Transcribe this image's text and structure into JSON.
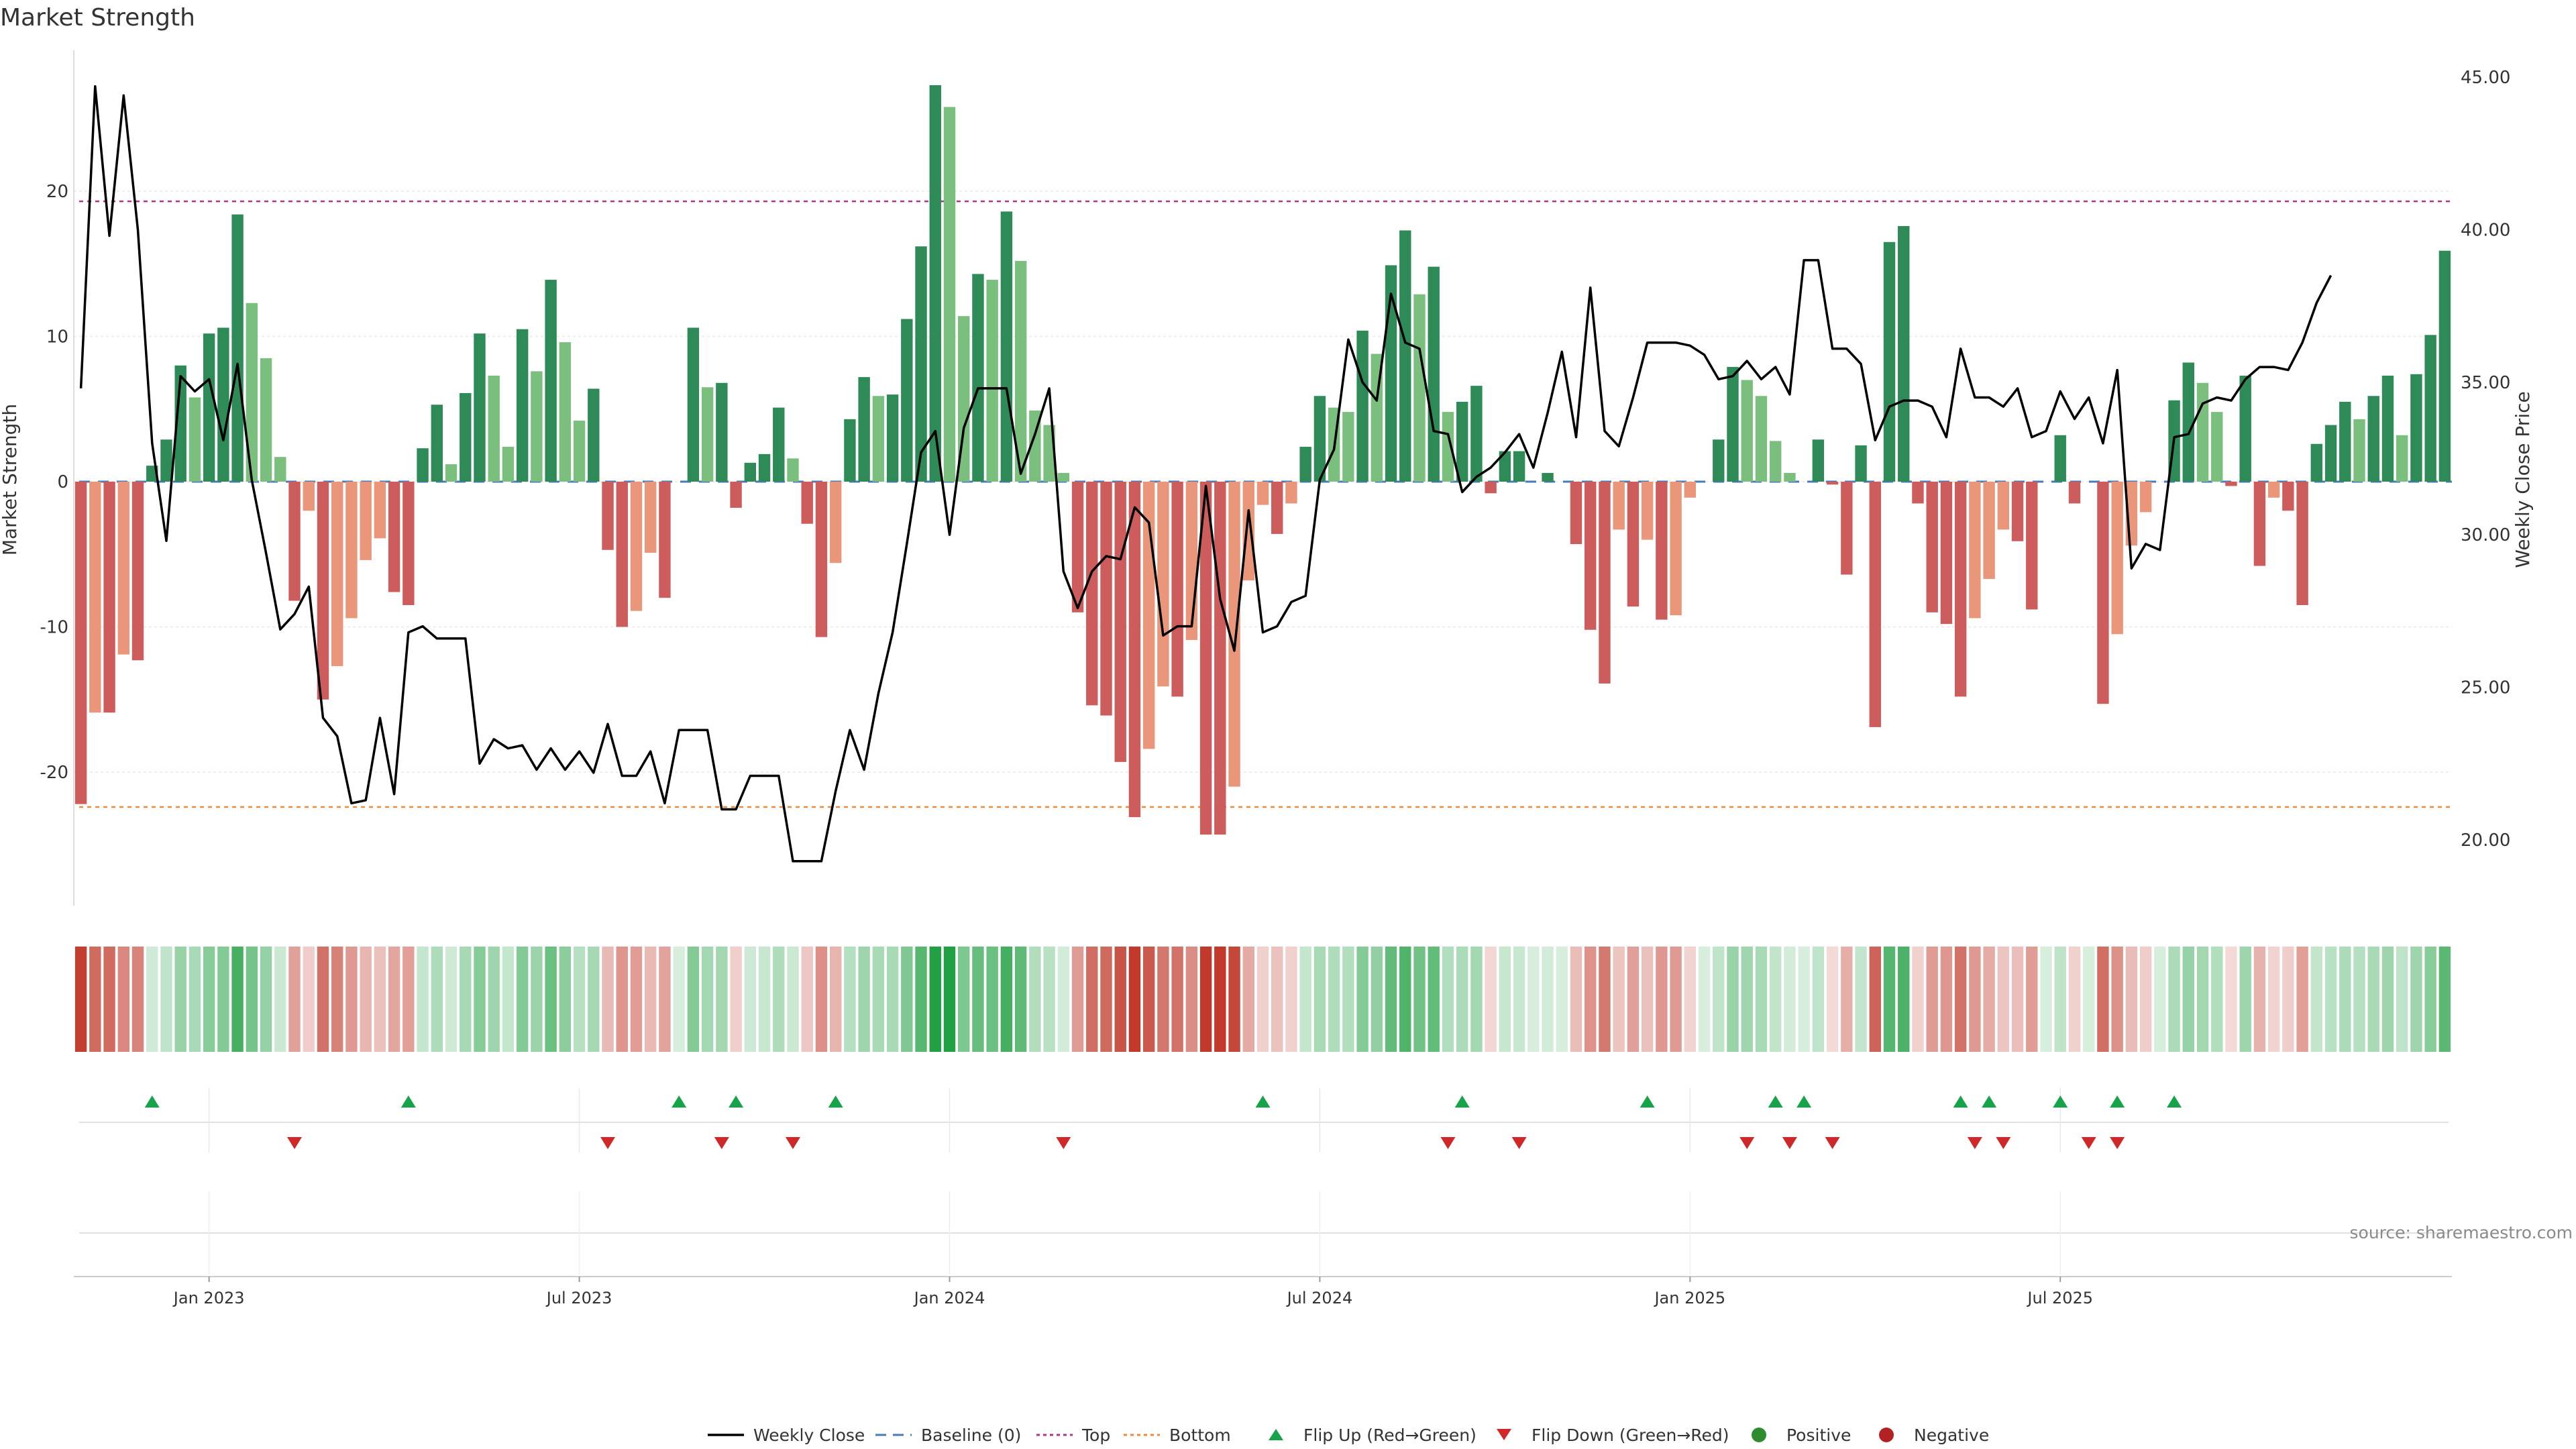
{
  "chart_data": {
    "type": "bar",
    "title": "Market Strength",
    "ylabel_left": "Market Strength",
    "ylabel_right": "Weekly Close Price",
    "source": "source: sharemaestro.com",
    "ylim_left": [
      -29,
      30
    ],
    "ylim_right": [
      17.7,
      46.4
    ],
    "yticks_left": [
      {
        "value": 20,
        "label": "20"
      },
      {
        "value": 10,
        "label": "10"
      },
      {
        "value": 0,
        "label": "0"
      },
      {
        "value": -10,
        "label": "-10"
      },
      {
        "value": -20,
        "label": "-20"
      }
    ],
    "yticks_right": [
      {
        "value": 45,
        "label": "45.00"
      },
      {
        "value": 40,
        "label": "40.00"
      },
      {
        "value": 35,
        "label": "35.00"
      },
      {
        "value": 30,
        "label": "30.00"
      },
      {
        "value": 25,
        "label": "25.00"
      },
      {
        "value": 20,
        "label": "20.00"
      }
    ],
    "xticks": [
      {
        "week": 9,
        "label": "Jan 2023"
      },
      {
        "week": 35,
        "label": "Jul 2023"
      },
      {
        "week": 61,
        "label": "Jan 2024"
      },
      {
        "week": 87,
        "label": "Jul 2024"
      },
      {
        "week": 113,
        "label": "Jan 2025"
      },
      {
        "week": 139,
        "label": "Jul 2025"
      }
    ],
    "top_line": 19.3,
    "bottom_line": -22.4,
    "baseline": 0,
    "strength": [
      -22.2,
      -15.9,
      -15.9,
      -11.9,
      -12.3,
      1.1,
      2.9,
      8.0,
      5.8,
      10.2,
      10.6,
      18.4,
      12.3,
      8.5,
      1.7,
      -8.2,
      -2.0,
      -15.0,
      -12.7,
      -9.4,
      -5.4,
      -3.9,
      -7.6,
      -8.5,
      2.3,
      5.3,
      1.2,
      6.1,
      10.2,
      7.3,
      2.4,
      10.5,
      7.6,
      13.9,
      9.6,
      4.2,
      6.4,
      -4.7,
      -10.0,
      -8.9,
      -4.9,
      -8.0,
      0.0,
      10.6,
      6.5,
      6.8,
      -1.8,
      1.3,
      1.9,
      5.1,
      1.6,
      -2.9,
      -10.7,
      -5.6,
      4.3,
      7.2,
      5.9,
      6.0,
      11.2,
      16.2,
      27.3,
      25.8,
      11.4,
      14.3,
      13.9,
      18.6,
      15.2,
      4.9,
      3.9,
      0.6,
      -9.0,
      -15.4,
      -16.1,
      -19.3,
      -23.1,
      -18.4,
      -14.1,
      -14.8,
      -10.9,
      -24.3,
      -24.3,
      -21.0,
      -6.8,
      -1.6,
      -3.6,
      -1.5,
      2.4,
      5.9,
      5.1,
      4.8,
      10.4,
      8.8,
      14.9,
      17.3,
      12.9,
      14.8,
      4.8,
      5.5,
      6.6,
      -0.8,
      2.1,
      2.1,
      0.0,
      0.6,
      0.0,
      -4.3,
      -10.2,
      -13.9,
      -3.3,
      -8.6,
      -4.0,
      -9.5,
      -9.2,
      -1.1,
      0.0,
      2.9,
      7.9,
      7.0,
      5.9,
      2.8,
      0.6,
      0.0,
      2.9,
      -0.2,
      -6.4,
      2.5,
      -16.9,
      16.5,
      17.6,
      -1.5,
      -9.0,
      -9.8,
      -14.8,
      -9.4,
      -6.7,
      -3.3,
      -4.1,
      -8.8,
      0.0,
      3.2,
      -1.5,
      0.0,
      -15.3,
      -10.5,
      -4.4,
      -2.1,
      0.0,
      5.6,
      8.2,
      6.8,
      4.8,
      -0.3,
      7.3,
      -5.8,
      -1.1,
      -2.0,
      -8.5,
      2.6,
      3.9,
      5.5,
      4.3,
      5.9,
      7.3,
      3.2,
      7.4,
      10.1,
      15.9
    ],
    "close": [
      34.8,
      44.7,
      39.8,
      44.4,
      40.0,
      33.0,
      29.8,
      35.2,
      34.7,
      35.1,
      33.1,
      35.6,
      31.8,
      29.4,
      26.9,
      27.4,
      28.3,
      24.0,
      23.4,
      21.2,
      21.3,
      24.0,
      21.5,
      26.8,
      27.0,
      26.6,
      26.6,
      26.6,
      22.5,
      23.3,
      23.0,
      23.1,
      22.3,
      23.0,
      22.3,
      22.9,
      22.2,
      23.8,
      22.1,
      22.1,
      22.9,
      21.2,
      23.6,
      23.6,
      23.6,
      21.0,
      21.0,
      22.1,
      22.1,
      22.1,
      19.3,
      19.3,
      19.3,
      21.6,
      23.6,
      22.3,
      24.8,
      26.8,
      29.7,
      32.7,
      33.4,
      30.0,
      33.5,
      34.8,
      34.8,
      34.8,
      32.0,
      33.3,
      34.8,
      28.8,
      27.6,
      28.8,
      29.3,
      29.2,
      30.9,
      30.4,
      26.7,
      27.0,
      27.0,
      31.6,
      27.9,
      26.2,
      30.8,
      26.8,
      27.0,
      27.8,
      28.0,
      31.8,
      32.8,
      36.4,
      35.0,
      34.4,
      37.9,
      36.3,
      36.1,
      33.4,
      33.3,
      31.4,
      31.9,
      32.2,
      32.7,
      33.3,
      32.2,
      34.0,
      36.0,
      33.2,
      38.1,
      33.4,
      32.9,
      34.5,
      36.3,
      36.3,
      36.3,
      36.2,
      35.9,
      35.1,
      35.2,
      35.7,
      35.1,
      35.5,
      34.6,
      39.0,
      39.0,
      36.1,
      36.1,
      35.6,
      33.1,
      34.2,
      34.4,
      34.4,
      34.2,
      33.2,
      36.1,
      34.5,
      34.5,
      34.2,
      34.8,
      33.2,
      33.4,
      34.7,
      33.8,
      34.5,
      33.0,
      35.4,
      28.9,
      29.7,
      29.5,
      33.2,
      33.3,
      34.3,
      34.5,
      34.4,
      35.1,
      35.5,
      35.5,
      35.4,
      36.3,
      37.6,
      38.5
    ],
    "flip_up_weeks": [
      5,
      23,
      42,
      46,
      53,
      83,
      97,
      110,
      119,
      121,
      132,
      134,
      139,
      143,
      147
    ],
    "flip_down_weeks": [
      15,
      37,
      45,
      50,
      69,
      96,
      101,
      117,
      120,
      123,
      133,
      135,
      141,
      143
    ],
    "series": [
      {
        "name": "Weekly Close",
        "color": "#000000"
      },
      {
        "name": "Baseline (0)",
        "color": "#4a7ab8"
      },
      {
        "name": "Top",
        "color": "#b0358a"
      },
      {
        "name": "Bottom",
        "color": "#ef8a3a"
      },
      {
        "name": "Flip Up (Red→Green)",
        "color": "#17a34a"
      },
      {
        "name": "Flip Down (Green→Red)",
        "color": "#d02828"
      },
      {
        "name": "Positive",
        "color": "#2e8b2e"
      },
      {
        "name": "Negative",
        "color": "#b22222"
      }
    ],
    "colors": {
      "strong_positive": "#2e8b57",
      "weak_positive": "#7bbf7f",
      "strong_negative": "#cd5c5c",
      "weak_negative": "#e9967a"
    },
    "legend_position": "bottom-center"
  }
}
